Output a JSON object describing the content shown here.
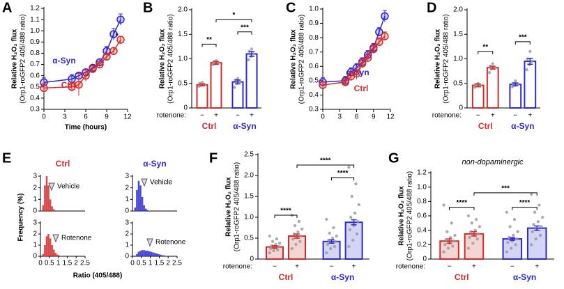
{
  "chart_data": [
    {
      "type": "line",
      "panel": "A",
      "ylabel": "Relative H₂O₂ flux",
      "ylabel2": "(Orp1-roGFP2 405/488 ratio)",
      "xlabel": "Time (hours)",
      "x": [
        0,
        4,
        5,
        6,
        7,
        8,
        9,
        10,
        11
      ],
      "xlim": [
        0,
        12
      ],
      "xticks": [
        0,
        3,
        6,
        9,
        12
      ],
      "ylim": [
        0.3,
        1.2
      ],
      "yticks": [
        0.3,
        0.4,
        0.5,
        0.6,
        0.7,
        0.8,
        0.9,
        {
          "value": 1,
          "label": "1.0"
        },
        1.1,
        1.2
      ],
      "series": [
        {
          "name": "α-Syn",
          "color": "#2d2ad0",
          "values": [
            0.54,
            0.57,
            0.6,
            0.63,
            0.67,
            0.72,
            0.82,
            0.97,
            1.1
          ],
          "errors": [
            0.04,
            0.04,
            0.03,
            0.03,
            0.03,
            0.03,
            0.04,
            0.05,
            0.05
          ]
        },
        {
          "name": "Ctrl",
          "color": "#d42a2a",
          "values": [
            0.49,
            0.5,
            0.52,
            0.6,
            0.66,
            0.7,
            0.77,
            0.82,
            0.92
          ],
          "errors": [
            0.04,
            0.04,
            0.1,
            0.05,
            0.03,
            0.03,
            0.03,
            0.03,
            0.03
          ]
        }
      ],
      "annotations": [
        "*"
      ]
    },
    {
      "type": "bar",
      "panel": "B",
      "ylabel": "Relative H₂O₂ flux",
      "ylabel2": "(Orp1-roGFP2 405/488 ratio)",
      "category_title": "rotenone:",
      "categories": [
        "−",
        "+",
        "−",
        "+"
      ],
      "groups": [
        "Ctrl",
        "α-Syn"
      ],
      "group_colors": [
        "#d42a2a",
        "#2d2ad0"
      ],
      "colors": [
        "#d42a2a",
        "#d42a2a",
        "#2d2ad0",
        "#2d2ad0"
      ],
      "fills": [
        "#ffffff",
        "#ffffff",
        "#ffffff",
        "#ffffff"
      ],
      "values": [
        0.47,
        0.92,
        0.53,
        1.1
      ],
      "errors": [
        0.02,
        0.03,
        0.04,
        0.05
      ],
      "points": [
        [
          0.44,
          0.46,
          0.48,
          0.5,
          0.52
        ],
        [
          0.88,
          0.9,
          0.92,
          0.94,
          0.96
        ],
        [
          0.42,
          0.5,
          0.54,
          0.57,
          0.6
        ],
        [
          0.98,
          1.05,
          1.1,
          1.15,
          1.2
        ]
      ],
      "ylim": [
        0,
        2
      ],
      "yticks": [
        0,
        0.5,
        {
          "value": 1,
          "label": "1.0"
        },
        1.5,
        {
          "value": 2,
          "label": "2.0"
        }
      ],
      "annotations": [
        "**",
        "***",
        "*"
      ]
    },
    {
      "type": "line",
      "panel": "C",
      "ylabel": "Relative H₂O₂ flux",
      "ylabel2": "(Orp1-roGFP2 405/488 ratio)",
      "x": [
        0,
        4,
        5,
        6,
        7,
        8,
        9,
        10,
        11
      ],
      "xlim": [
        0,
        12
      ],
      "xticks": [
        0,
        3,
        6,
        9,
        12
      ],
      "ylim": [
        0.3,
        1
      ],
      "yticks": [
        0.3,
        0.4,
        0.5,
        0.6,
        0.7,
        0.8,
        0.9,
        {
          "value": 1,
          "label": "1.0"
        }
      ],
      "series": [
        {
          "name": "α-Syn",
          "color": "#2d2ad0",
          "values": [
            0.49,
            0.5,
            0.56,
            0.59,
            0.63,
            0.68,
            0.73,
            0.84,
            0.95
          ],
          "errors": [
            0.03,
            0.03,
            0.03,
            0.03,
            0.03,
            0.03,
            0.03,
            0.03,
            0.04
          ]
        },
        {
          "name": "Ctrl",
          "color": "#d42a2a",
          "values": [
            0.47,
            0.49,
            0.53,
            0.55,
            0.62,
            0.66,
            0.72,
            0.77,
            0.81
          ],
          "errors": [
            0.02,
            0.02,
            0.03,
            0.04,
            0.03,
            0.03,
            0.03,
            0.03,
            0.03
          ]
        }
      ],
      "annotations": []
    },
    {
      "type": "bar",
      "panel": "D",
      "ylabel": "Relative H₂O₂ flux",
      "ylabel2": "(Orp1-roGFP2 405/488 ratio)",
      "category_title": "rotenone:",
      "categories": [
        "−",
        "+",
        "−",
        "+"
      ],
      "groups": [
        "Ctrl",
        "α-Syn"
      ],
      "group_colors": [
        "#d42a2a",
        "#2d2ad0"
      ],
      "colors": [
        "#d42a2a",
        "#d42a2a",
        "#2d2ad0",
        "#2d2ad0"
      ],
      "fills": [
        "#ffffff",
        "#ffffff",
        "#ffffff",
        "#ffffff"
      ],
      "values": [
        0.46,
        0.82,
        0.48,
        0.95
      ],
      "errors": [
        0.03,
        0.03,
        0.03,
        0.06
      ],
      "points": [
        [
          0.42,
          0.45,
          0.46,
          0.48,
          0.5
        ],
        [
          0.72,
          0.8,
          0.82,
          0.85,
          0.9
        ],
        [
          0.43,
          0.46,
          0.48,
          0.5,
          0.55
        ],
        [
          0.78,
          0.88,
          0.95,
          1.0,
          1.15
        ]
      ],
      "ylim": [
        0,
        2
      ],
      "yticks": [
        0,
        0.5,
        {
          "value": 1,
          "label": "1.0"
        },
        1.5,
        {
          "value": 2,
          "label": "2.0"
        }
      ],
      "annotations": [
        "**",
        "***"
      ]
    },
    {
      "type": "histogram",
      "panel": "E",
      "ylabel": "Frequency (%)",
      "xlabel": "Ratio (405/488)",
      "columns": [
        "Ctrl",
        "α-Syn"
      ],
      "column_colors": [
        "#d42a2a",
        "#2d2ad0"
      ],
      "bins": [
        0,
        0.1,
        0.2,
        0.3,
        0.4,
        0.5,
        0.6,
        0.7,
        0.8,
        0.9,
        1,
        1.1,
        1.2,
        1.3,
        1.4,
        1.5,
        1.6,
        1.7,
        1.8,
        1.9,
        2,
        2.1,
        2.2,
        2.3,
        2.4,
        2.5
      ],
      "xlim": [
        0,
        2.5
      ],
      "xticks": [
        0,
        0.5,
        1,
        1.5,
        2,
        2.5
      ],
      "ylim": [
        0,
        3
      ],
      "yticks": [
        0,
        1,
        2,
        3
      ],
      "series": [
        {
          "name": "Vehicle",
          "color": "#d42a2a",
          "values": [
            0,
            0.5,
            2.2,
            3,
            2.2,
            1,
            0.4,
            0.15,
            0.05,
            0,
            0,
            0,
            0,
            0,
            0,
            0,
            0,
            0,
            0,
            0,
            0,
            0,
            0,
            0,
            0
          ]
        },
        {
          "name": "Rotenone",
          "color": "#d42a2a",
          "values": [
            0,
            0.2,
            1,
            1.8,
            2,
            1.6,
            1,
            0.6,
            0.3,
            0.15,
            0.08,
            0.03,
            0,
            0,
            0,
            0,
            0,
            0,
            0,
            0,
            0,
            0,
            0,
            0,
            0
          ]
        },
        {
          "name": "Vehicle",
          "color": "#2d2ad0",
          "values": [
            0,
            0.3,
            1.8,
            2.6,
            2.2,
            1.2,
            0.5,
            0.2,
            0.08,
            0.03,
            0,
            0,
            0,
            0,
            0,
            0,
            0,
            0,
            0,
            0,
            0,
            0,
            0,
            0,
            0
          ]
        },
        {
          "name": "Rotenone",
          "color": "#2d2ad0",
          "values": [
            0,
            0.05,
            0.2,
            0.4,
            0.5,
            0.55,
            0.55,
            0.5,
            0.5,
            0.45,
            0.4,
            0.35,
            0.3,
            0.25,
            0.2,
            0.15,
            0.1,
            0.08,
            0.05,
            0.03,
            0.02,
            0.01,
            0,
            0,
            0
          ]
        }
      ]
    },
    {
      "type": "bar",
      "panel": "F",
      "ylabel": "Relative H₂O₂ flux",
      "ylabel2": "(Orp1-roGFP2 405/488 ratio)",
      "category_title": "rotenone:",
      "categories": [
        "−",
        "+",
        "−",
        "+"
      ],
      "groups": [
        "Ctrl",
        "α-Syn"
      ],
      "group_colors": [
        "#d42a2a",
        "#2d2ad0"
      ],
      "colors": [
        "#d42a2a",
        "#d42a2a",
        "#2d2ad0",
        "#2d2ad0"
      ],
      "fills": [
        "#f5d4d4",
        "#f5d4d4",
        "#d4d4f5",
        "#d4d4f5"
      ],
      "values": [
        0.29,
        0.55,
        0.42,
        0.88
      ],
      "errors": [
        0.03,
        0.05,
        0.04,
        0.06
      ],
      "points": [
        [
          0.15,
          0.2,
          0.22,
          0.25,
          0.27,
          0.3,
          0.32,
          0.35,
          0.38,
          0.42,
          0.48,
          0.55
        ],
        [
          0.25,
          0.35,
          0.42,
          0.48,
          0.52,
          0.55,
          0.6,
          0.65,
          0.72,
          0.8,
          0.9,
          1.05
        ],
        [
          0.15,
          0.25,
          0.3,
          0.35,
          0.4,
          0.42,
          0.45,
          0.5,
          0.55,
          0.62,
          0.75,
          0.95
        ],
        [
          0.3,
          0.45,
          0.6,
          0.7,
          0.8,
          0.9,
          1.0,
          1.1,
          1.3,
          1.5,
          1.8,
          2.2
        ]
      ],
      "ylim": [
        0,
        2.5
      ],
      "yticks": [
        0,
        0.5,
        {
          "value": 1,
          "label": "1.0"
        },
        1.5,
        {
          "value": 2,
          "label": "2.0"
        },
        2.5
      ],
      "annotations": [
        "****",
        "****",
        "****"
      ]
    },
    {
      "type": "bar",
      "panel": "G",
      "subtitle": "non-dopaminergic",
      "ylabel": "Relative H₂O₂ flux",
      "ylabel2": "(Orp1-roGFP2 405/488 ratio)",
      "category_title": "rotenone:",
      "categories": [
        "−",
        "+",
        "−",
        "+"
      ],
      "groups": [
        "Ctrl",
        "α-Syn"
      ],
      "group_colors": [
        "#d42a2a",
        "#2d2ad0"
      ],
      "colors": [
        "#d42a2a",
        "#d42a2a",
        "#2d2ad0",
        "#2d2ad0"
      ],
      "fills": [
        "#f5d4d4",
        "#f5d4d4",
        "#d4d4f5",
        "#d4d4f5"
      ],
      "values": [
        0.25,
        0.35,
        0.28,
        0.43
      ],
      "errors": [
        0.03,
        0.03,
        0.02,
        0.03
      ],
      "points": [
        [
          0.1,
          0.15,
          0.18,
          0.2,
          0.22,
          0.25,
          0.27,
          0.3,
          0.33,
          0.38,
          0.5,
          0.75
        ],
        [
          0.15,
          0.22,
          0.28,
          0.3,
          0.33,
          0.35,
          0.38,
          0.4,
          0.45,
          0.5,
          0.55,
          0.6
        ],
        [
          0.1,
          0.15,
          0.2,
          0.23,
          0.25,
          0.28,
          0.3,
          0.33,
          0.38,
          0.45,
          0.55,
          0.65
        ],
        [
          0.2,
          0.28,
          0.33,
          0.38,
          0.42,
          0.45,
          0.48,
          0.52,
          0.58,
          0.65,
          0.75,
          0.9
        ]
      ],
      "ylim": [
        0,
        1.2
      ],
      "yticks": [
        0,
        0.2,
        0.4,
        0.6,
        0.8,
        {
          "value": 1,
          "label": "1.0"
        },
        1.2
      ],
      "annotations": [
        "****",
        "****",
        "***"
      ]
    }
  ]
}
